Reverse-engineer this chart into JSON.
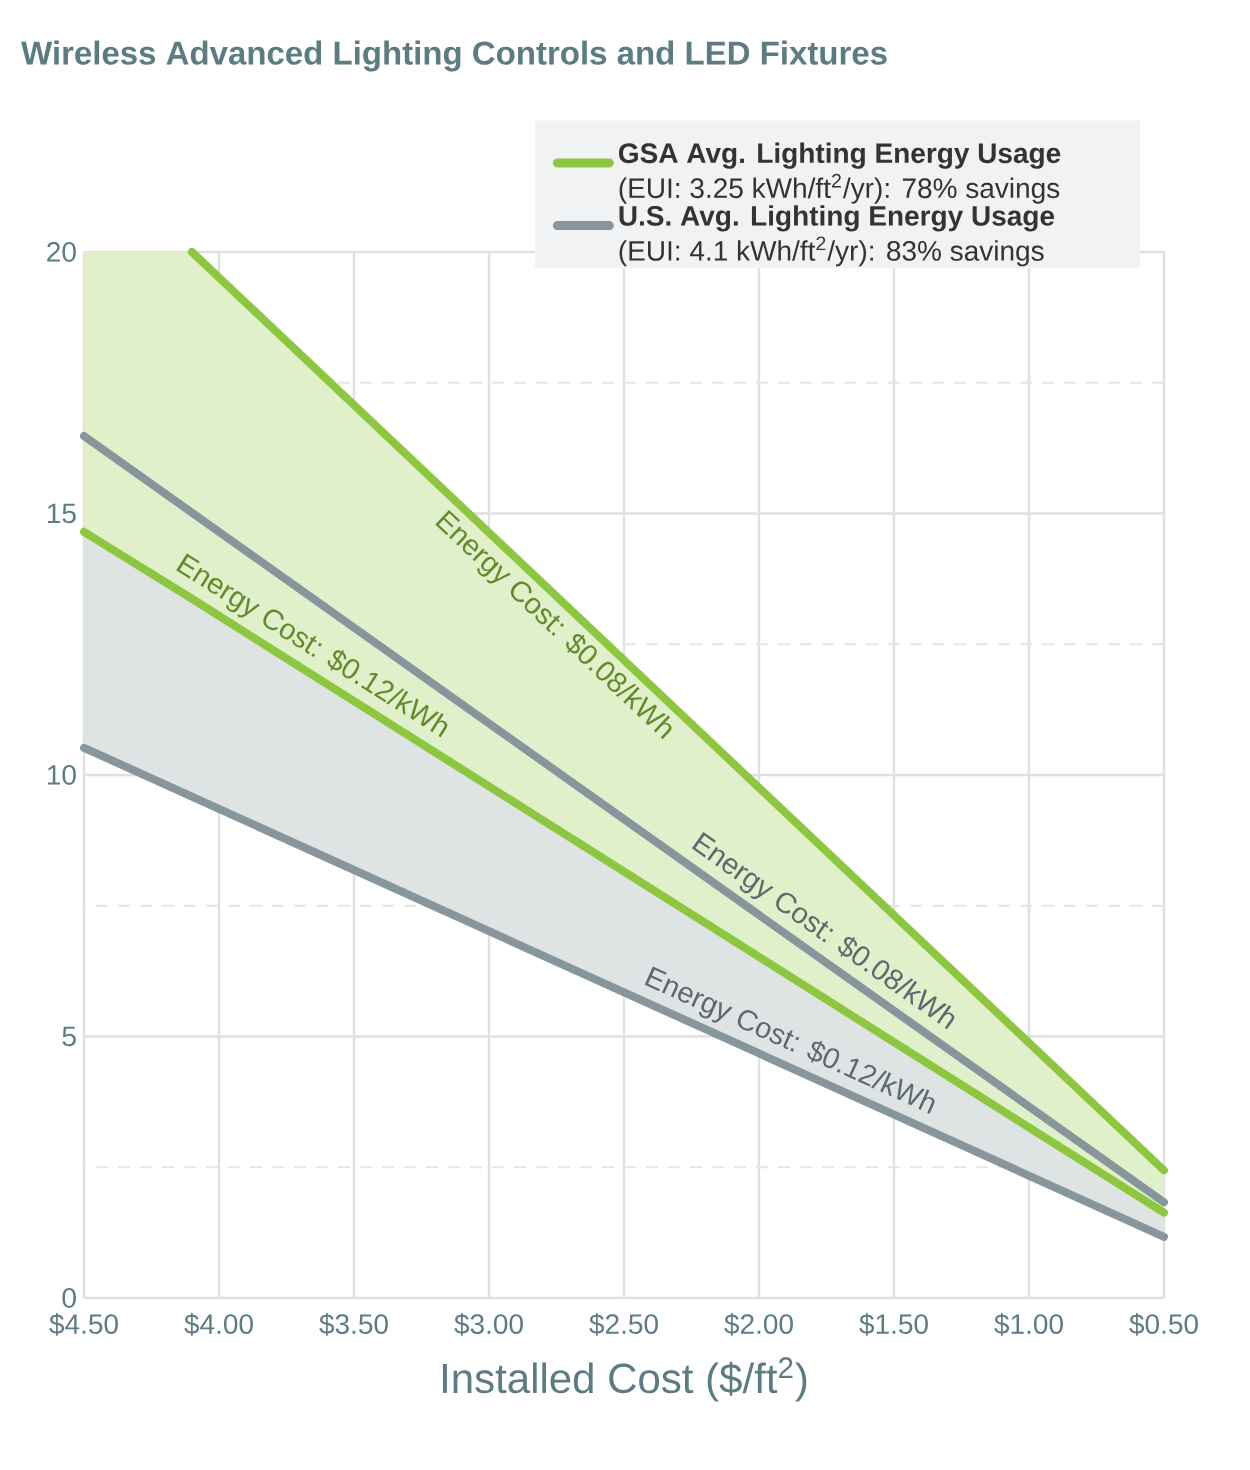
{
  "chart_data": {
    "type": "line",
    "title": "Wireless Advanced Lighting Controls and LED Fixtures",
    "xlabel": "Installed Cost ($/ft$^{2}$)",
    "xlim": [
      4.5,
      0.5
    ],
    "xticks": [
      {
        "value": 4.5,
        "label": "$4.50"
      },
      {
        "value": 4.0,
        "label": "$4.00"
      },
      {
        "value": 3.5,
        "label": "$3.50"
      },
      {
        "value": 3.0,
        "label": "$3.00"
      },
      {
        "value": 2.5,
        "label": "$2.50"
      },
      {
        "value": 2.0,
        "label": "$2.00"
      },
      {
        "value": 1.5,
        "label": "$1.50"
      },
      {
        "value": 1.0,
        "label": "$1.00"
      },
      {
        "value": 0.5,
        "label": "$0.50"
      }
    ],
    "ylim": [
      0,
      20
    ],
    "yticks": [
      0,
      {
        "value": 2.5,
        "label": null
      },
      5,
      {
        "value": 7.5,
        "label": null
      },
      10,
      {
        "value": 12.5,
        "label": null
      },
      15,
      {
        "value": 17.5,
        "label": null
      },
      20
    ],
    "grid": true,
    "legend": "top right",
    "series": [
      {
        "name": "**GSA Avg. Lighting Energy Usage** (EUI: 3.25 kWh/ft$^{2}$/yr): 78% savings",
        "color": "#8dc63f",
        "x": [
          4.1,
          0.5
        ],
        "values": [
          20,
          2.44
        ]
      },
      {
        "color": "#8dc63f",
        "x": [
          4.5,
          4.1,
          0.5
        ],
        "values": [
          14.65,
          13.37,
          1.63
        ],
        "lower": [
          14.65,
          13.37,
          1.63
        ],
        "upper": [
          20,
          20,
          2.44
        ]
      },
      {
        "name": "**U.S. Avg. Lighting Energy Usage** (EUI: 4.1 kWh/ft$^{2}$/yr): 83% savings",
        "color": "#86969c",
        "x": [
          4.5,
          0.5
        ],
        "values": [
          16.48,
          1.83
        ]
      },
      {
        "color": "#86969c",
        "x": [
          4.5,
          0.5
        ],
        "values": [
          10.52,
          1.17
        ],
        "lower": [
          10.52,
          1.17
        ],
        "upper": [
          16.48,
          1.83
        ]
      }
    ],
    "annotations": [
      {
        "text": "Energy Cost: $0.08/kWh",
        "x": 2.7,
        "y": 13.17
      },
      {
        "text": "Energy Cost: $0.12/kWh",
        "x": 3.7,
        "y": 12.07
      },
      {
        "text": "Energy Cost: $0.08/kWh",
        "x": 1.81,
        "y": 6.63
      },
      {
        "text": "Energy Cost: $0.12/kWh",
        "x": 1.92,
        "y": 4.49
      }
    ]
  }
}
